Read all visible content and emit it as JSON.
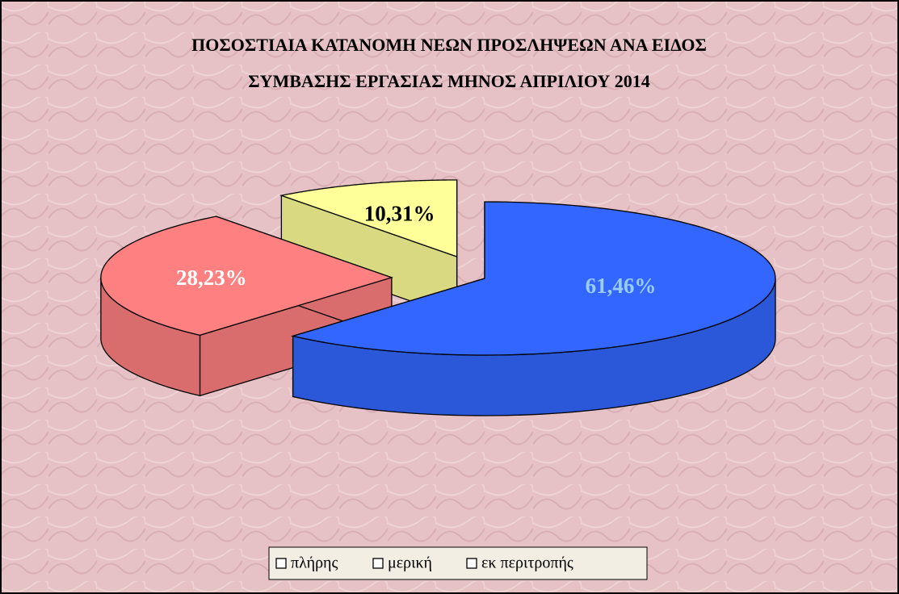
{
  "chart_data": {
    "type": "pie3d",
    "title": [
      "ΠΟΣΟΣΤΙΑΙΑ ΚΑΤΑΝΟΜΗ ΝΕΩΝ ΠΡΟΣΛΗΨΕΩΝ ΑΝΑ ΕΙΔΟΣ",
      "ΣΥΜΒΑΣΗΣ ΕΡΓΑΣΙΑΣ ΜΗΝΟΣ ΑΠΡΙΛΙΟΥ 2014"
    ],
    "categories": [
      "πλήρης",
      "μερική",
      "εκ περιτροπής"
    ],
    "values": [
      61.46,
      28.23,
      10.31
    ],
    "value_labels": [
      "61,46%",
      "28,23%",
      "10,31%"
    ],
    "colors": [
      "#3366ff",
      "#ff8080",
      "#ffff99"
    ],
    "label_colors": [
      "#99ccff",
      "#ffffff",
      "#000000"
    ],
    "legend": "bottom"
  }
}
